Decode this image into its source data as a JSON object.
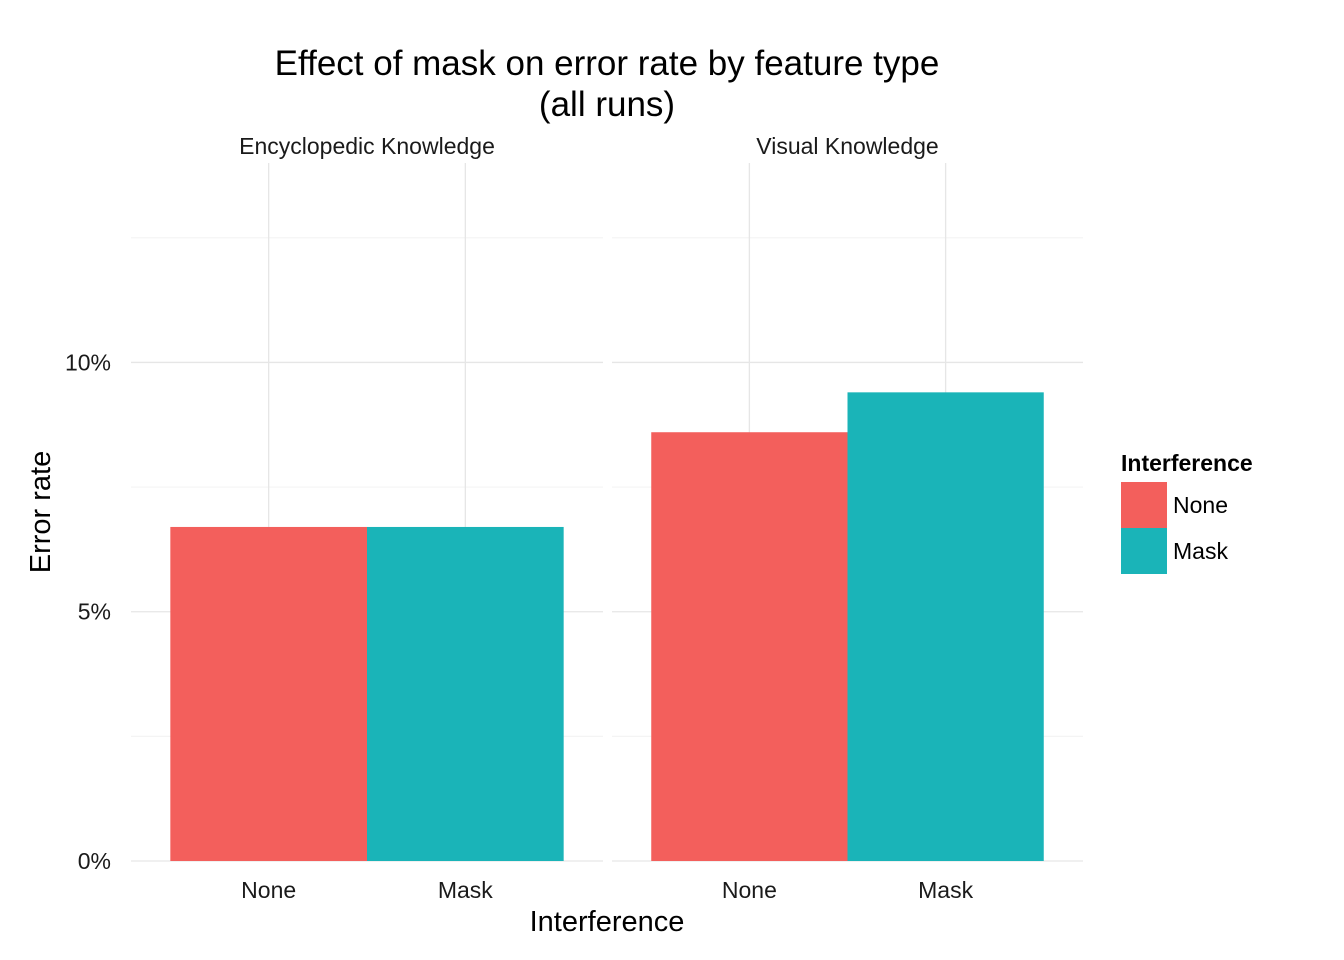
{
  "chart_data": {
    "type": "bar",
    "title": [
      "Effect of mask on error rate by feature type",
      "(all runs)"
    ],
    "xlabel": "Interference",
    "ylabel": "Error rate",
    "categories": [
      "None",
      "Mask"
    ],
    "ylim": [
      0,
      14
    ],
    "yticks": [
      0,
      5,
      10
    ],
    "ytick_labels": [
      "0%",
      "5%",
      "10%"
    ],
    "grid": true,
    "legend": {
      "title": "Interference",
      "position": "right",
      "entries": [
        {
          "label": "None",
          "color": "#F8766D"
        },
        {
          "label": "Mask",
          "color": "#00BFC4"
        }
      ]
    },
    "colors": {
      "None": "#F35F5C",
      "Mask": "#1AB4B8"
    },
    "panels": [
      {
        "name": "Encyclopedic Knowledge",
        "values": [
          6.7,
          6.7
        ]
      },
      {
        "name": "Visual Knowledge",
        "values": [
          8.6,
          9.4
        ]
      }
    ]
  }
}
